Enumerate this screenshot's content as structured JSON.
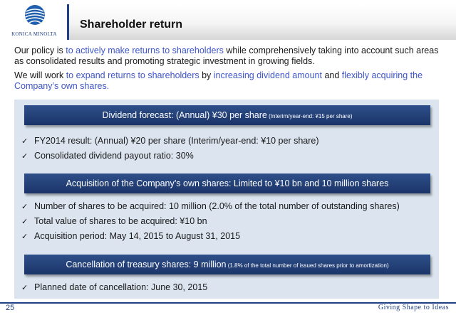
{
  "header": {
    "logo_text": "KONICA MINOLTA",
    "title": "Shareholder return"
  },
  "intro": {
    "p1_a": "Our policy is ",
    "p1_hl": "to actively make returns to shareholders",
    "p1_b": " while comprehensively taking into account such areas as consolidated results and promoting strategic investment in growing fields.",
    "p2_a": "We will work ",
    "p2_hl1": "to expand returns to shareholders",
    "p2_b": " by ",
    "p2_hl2": "increasing dividend amount",
    "p2_c": " and ",
    "p2_hl3": "flexibly acquiring the Company’s own shares."
  },
  "sections": [
    {
      "heading": "Dividend forecast: (Annual) ¥30 per share",
      "heading_small": " (Interim/year-end: ¥15 per share)",
      "bullets": [
        "FY2014 result: (Annual) ¥20 per share (Interim/year-end: ¥10 per share)",
        "Consolidated dividend payout ratio: 30%"
      ]
    },
    {
      "heading": "Acquisition of the Company’s own shares: Limited to ¥10 bn and 10 million shares",
      "heading_small": "",
      "bullets": [
        "Number of shares to be acquired: 10 million (2.0% of the total number of outstanding shares)",
        "Total value of shares to be acquired: ¥10 bn",
        "Acquisition period: May 14, 2015 to August 31, 2015"
      ]
    },
    {
      "heading": "Cancellation of treasury shares: 9 million",
      "heading_small": " (1.8% of the total number of issued shares prior to amortization)",
      "bullets": [
        "Planned date of cancellation: June 30, 2015"
      ]
    }
  ],
  "check_glyph": "✓",
  "footer": {
    "page_number": "25",
    "slogan": "Giving Shape to Ideas"
  },
  "colors": {
    "brand_blue": "#1f3f86",
    "highlight": "#3d55c8",
    "panel": "#dbe4ef"
  }
}
